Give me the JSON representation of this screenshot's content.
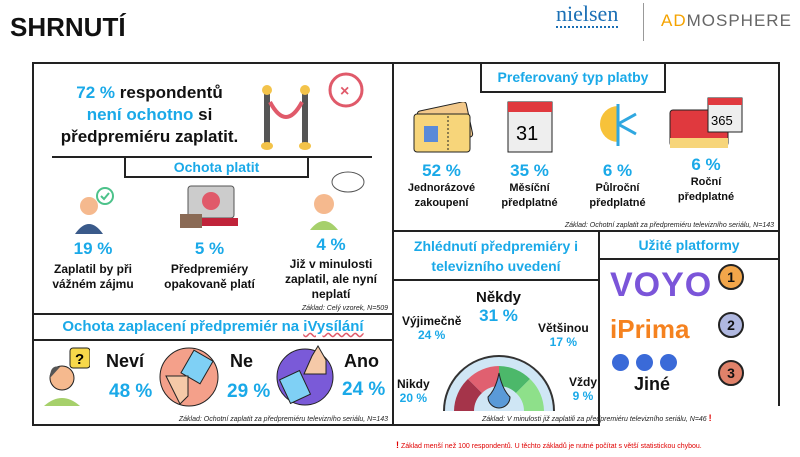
{
  "title": "SHRNUTÍ",
  "logos": {
    "nielsen": "nielsen",
    "admosphere_ad": "AD",
    "admosphere_rest": "MOSPHERE"
  },
  "headline": {
    "pct": "72 %",
    "t1": " respondentů",
    "hl": "není ochotno",
    "t2": " si",
    "t3": "předpremiéru zaplatit."
  },
  "willingness": {
    "header": "Ochota platit",
    "items": [
      {
        "pct": "19 %",
        "label": "Zaplatil by při vážném zájmu",
        "icon": "person-check-icon"
      },
      {
        "pct": "5 %",
        "label": "Předpremiéry opakovaně platí",
        "icon": "wallet-ticket-icon"
      },
      {
        "pct": "4 %",
        "label": "Již v minulosti zaplatil, ale nyní neplatí",
        "icon": "old-man-icon"
      }
    ],
    "base": "Základ: Celý vzorek, N=509"
  },
  "ivysilani": {
    "header_pre": "Ochota zaplacení předpremiér na ",
    "header_link": "iVysílání",
    "items": [
      {
        "label": "Neví",
        "pct": "48 %",
        "icon": "confused-person-icon"
      },
      {
        "label": "Ne",
        "pct": "29 %",
        "icon": "thumbs-down-icon"
      },
      {
        "label": "Ano",
        "pct": "24 %",
        "icon": "thumbs-up-icon"
      }
    ],
    "base": "Základ: Ochotní zaplatit za předpremiéru televizního seriálu, N=143"
  },
  "payment": {
    "header": "Preferovaný typ platby",
    "items": [
      {
        "pct": "52 %",
        "label": "Jednorázové zakoupení",
        "icon": "ticket-icon"
      },
      {
        "pct": "35 %",
        "label": "Měsíční předplatné",
        "icon": "calendar-icon",
        "icon_text": "31"
      },
      {
        "pct": "6 %",
        "label": "Půlroční předplatné",
        "icon": "sun-snowflake-icon"
      },
      {
        "pct": "6 %",
        "label": "Roční předplatné",
        "icon": "calendar-365-icon",
        "icon_text": "365"
      }
    ],
    "base": "Základ: Ochotní zaplatit za předpremiéru televizního seriálu, N=143"
  },
  "viewing": {
    "header": "Zhlédnutí předpremiéry i televizního uvedení",
    "items": [
      {
        "label": "Nikdy",
        "pct": "20 %"
      },
      {
        "label": "Výjimečně",
        "pct": "24 %"
      },
      {
        "label": "Někdy",
        "pct": "31 %"
      },
      {
        "label": "Většinou",
        "pct": "17 %"
      },
      {
        "label": "Vždy",
        "pct": "9 %"
      }
    ],
    "base": "Základ: V minulosti již zaplatili za předpremiéru televizního seriálu, N=46",
    "warn": "!"
  },
  "platforms": {
    "header": "Užité platformy",
    "items": [
      {
        "name": "VOYO",
        "rank": "1"
      },
      {
        "name": "iPrima",
        "rank": "2"
      },
      {
        "name": "Jiné",
        "rank": "3"
      }
    ]
  },
  "footnote": {
    "mark": "!",
    "text": " Základ menší než 100 respondentů. U těchto základů je nutné počítat s větší statistickou chybou."
  },
  "colors": {
    "accent": "#1aa9e8",
    "voyo": "#7b55d9",
    "prima": "#f5821f",
    "warn": "#e00000"
  }
}
